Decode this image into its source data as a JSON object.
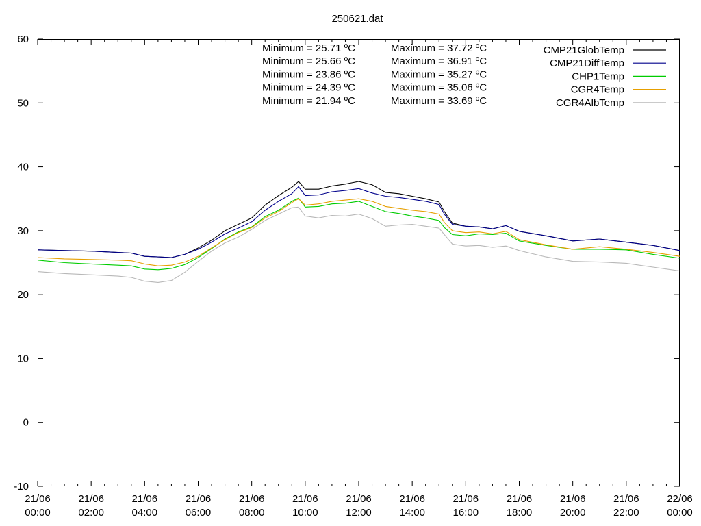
{
  "chart_data": {
    "type": "line",
    "title": "250621.dat",
    "ylim": [
      -10,
      60
    ],
    "y_ticks": [
      -10,
      0,
      10,
      20,
      30,
      40,
      50,
      60
    ],
    "x_range_hours": [
      0,
      24
    ],
    "x_ticks": [
      {
        "hour": 0,
        "date": "21/06",
        "time": "00:00"
      },
      {
        "hour": 2,
        "date": "21/06",
        "time": "02:00"
      },
      {
        "hour": 4,
        "date": "21/06",
        "time": "04:00"
      },
      {
        "hour": 6,
        "date": "21/06",
        "time": "06:00"
      },
      {
        "hour": 8,
        "date": "21/06",
        "time": "08:00"
      },
      {
        "hour": 10,
        "date": "21/06",
        "time": "10:00"
      },
      {
        "hour": 12,
        "date": "21/06",
        "time": "12:00"
      },
      {
        "hour": 14,
        "date": "21/06",
        "time": "14:00"
      },
      {
        "hour": 16,
        "date": "21/06",
        "time": "16:00"
      },
      {
        "hour": 18,
        "date": "21/06",
        "time": "18:00"
      },
      {
        "hour": 20,
        "date": "21/06",
        "time": "20:00"
      },
      {
        "hour": 22,
        "date": "21/06",
        "time": "22:00"
      },
      {
        "hour": 24,
        "date": "22/06",
        "time": "00:00"
      }
    ],
    "legend_position": "top-right",
    "min_labels": [
      "Minimum = 25.71 ºC",
      "Minimum = 25.66 ºC",
      "Minimum = 23.86 ºC",
      "Minimum = 24.39 ºC",
      "Minimum = 21.94 ºC"
    ],
    "max_labels": [
      "Maximum = 37.72 ºC",
      "Maximum = 36.91 ºC",
      "Maximum = 35.27 ºC",
      "Maximum = 35.06 ºC",
      "Maximum = 33.69 ºC"
    ],
    "series": [
      {
        "name": "CMP21GlobTemp",
        "color": "#000000",
        "x": [
          0,
          1,
          2,
          3,
          3.5,
          4,
          4.5,
          5,
          5.5,
          6,
          6.5,
          7,
          7.5,
          8,
          8.5,
          9,
          9.5,
          9.75,
          10,
          10.5,
          11,
          11.5,
          12,
          12.5,
          13,
          13.5,
          14,
          14.5,
          15,
          15.2,
          15.5,
          16,
          16.5,
          17,
          17.5,
          18,
          19,
          20,
          21,
          22,
          23,
          24
        ],
        "y": [
          27.0,
          26.9,
          26.8,
          26.6,
          26.5,
          26.0,
          25.9,
          25.8,
          26.3,
          27.3,
          28.5,
          30.0,
          31.0,
          32.0,
          34.0,
          35.5,
          36.8,
          37.7,
          36.5,
          36.5,
          37.0,
          37.3,
          37.7,
          37.2,
          36.0,
          35.8,
          35.4,
          35.0,
          34.5,
          33.0,
          31.2,
          30.7,
          30.6,
          30.3,
          30.8,
          29.9,
          29.2,
          28.4,
          28.7,
          28.2,
          27.7,
          26.9
        ]
      },
      {
        "name": "CMP21DiffTemp",
        "color": "#00008b",
        "x": [
          0,
          1,
          2,
          3,
          3.5,
          4,
          4.5,
          5,
          5.5,
          6,
          6.5,
          7,
          7.5,
          8,
          8.5,
          9,
          9.5,
          9.75,
          10,
          10.5,
          11,
          11.5,
          12,
          12.5,
          13,
          13.5,
          14,
          14.5,
          15,
          15.2,
          15.5,
          16,
          16.5,
          17,
          17.5,
          18,
          19,
          20,
          21,
          22,
          23,
          24
        ],
        "y": [
          27.0,
          26.9,
          26.8,
          26.6,
          26.5,
          26.0,
          25.9,
          25.8,
          26.3,
          27.1,
          28.2,
          29.5,
          30.4,
          31.4,
          33.2,
          34.6,
          35.8,
          36.9,
          35.5,
          35.6,
          36.1,
          36.3,
          36.6,
          35.9,
          35.4,
          35.2,
          34.9,
          34.6,
          34.1,
          32.6,
          31.0,
          30.7,
          30.6,
          30.3,
          30.8,
          29.9,
          29.2,
          28.4,
          28.7,
          28.2,
          27.7,
          26.9
        ]
      },
      {
        "name": "CHP1Temp",
        "color": "#00cc00",
        "x": [
          0,
          1,
          2,
          3,
          3.5,
          4,
          4.5,
          5,
          5.5,
          6,
          6.5,
          7,
          7.5,
          8,
          8.5,
          9,
          9.5,
          9.75,
          10,
          10.5,
          11,
          11.5,
          12,
          12.5,
          13,
          13.5,
          14,
          14.5,
          15,
          15.2,
          15.5,
          16,
          16.5,
          17,
          17.5,
          18,
          19,
          20,
          21,
          22,
          23,
          24
        ],
        "y": [
          25.4,
          25.0,
          24.8,
          24.6,
          24.5,
          24.0,
          23.9,
          24.1,
          24.7,
          25.8,
          27.2,
          28.7,
          29.8,
          30.6,
          32.2,
          33.2,
          34.6,
          35.1,
          33.7,
          33.8,
          34.2,
          34.3,
          34.6,
          33.8,
          33.0,
          32.7,
          32.3,
          32.0,
          31.6,
          30.5,
          29.4,
          29.2,
          29.5,
          29.4,
          29.6,
          28.4,
          27.7,
          27.1,
          27.1,
          27.0,
          26.3,
          25.7
        ]
      },
      {
        "name": "CGR4Temp",
        "color": "#e69f00",
        "x": [
          0,
          1,
          2,
          3,
          3.5,
          4,
          4.5,
          5,
          5.5,
          6,
          6.5,
          7,
          7.5,
          8,
          8.5,
          9,
          9.5,
          9.75,
          10,
          10.5,
          11,
          11.5,
          12,
          12.5,
          13,
          13.5,
          14,
          14.5,
          15,
          15.2,
          15.5,
          16,
          16.5,
          17,
          17.5,
          18,
          19,
          20,
          21,
          22,
          23,
          24
        ],
        "y": [
          25.8,
          25.6,
          25.5,
          25.4,
          25.3,
          24.8,
          24.5,
          24.6,
          25.1,
          26.0,
          27.3,
          28.6,
          29.7,
          30.5,
          32.0,
          33.0,
          34.4,
          35.0,
          34.0,
          34.2,
          34.6,
          34.8,
          35.0,
          34.6,
          33.8,
          33.5,
          33.2,
          33.0,
          32.6,
          31.3,
          30.0,
          29.7,
          29.8,
          29.5,
          29.9,
          28.6,
          27.8,
          27.1,
          27.5,
          27.1,
          26.6,
          26.0
        ]
      },
      {
        "name": "CGR4AlbTemp",
        "color": "#b8b8b8",
        "x": [
          0,
          1,
          2,
          3,
          3.5,
          4,
          4.5,
          5,
          5.5,
          6,
          6.5,
          7,
          7.5,
          8,
          8.5,
          9,
          9.5,
          9.75,
          10,
          10.5,
          11,
          11.5,
          12,
          12.5,
          13,
          13.5,
          14,
          14.5,
          15,
          15.2,
          15.5,
          16,
          16.5,
          17,
          17.5,
          18,
          19,
          20,
          21,
          22,
          23,
          24
        ],
        "y": [
          23.6,
          23.3,
          23.1,
          22.9,
          22.7,
          22.1,
          21.9,
          22.2,
          23.5,
          25.2,
          26.8,
          28.1,
          29.0,
          30.2,
          31.6,
          32.6,
          33.6,
          33.7,
          32.3,
          32.0,
          32.4,
          32.3,
          32.6,
          31.9,
          30.7,
          30.9,
          31.0,
          30.7,
          30.4,
          29.4,
          27.9,
          27.6,
          27.7,
          27.4,
          27.6,
          26.9,
          25.9,
          25.2,
          25.1,
          24.9,
          24.3,
          23.7
        ]
      }
    ]
  }
}
